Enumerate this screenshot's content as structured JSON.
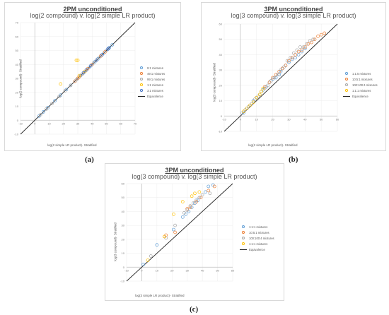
{
  "captions": {
    "a": "(a)",
    "b": "(b)",
    "c": "(c)"
  },
  "chart_data": [
    {
      "id": "a",
      "type": "scatter",
      "title_bold": "2PM unconditioned",
      "title": "log(2 compound) v. log(2 simple LR product)",
      "xlabel": "log(2 simple LR product)- Stratified",
      "ylabel": "log(2 compound)- Stratified",
      "xlim": [
        -10,
        70
      ],
      "ylim": [
        -10,
        70
      ],
      "xticks": [
        -10,
        0,
        10,
        20,
        30,
        40,
        50,
        60,
        70
      ],
      "yticks": [
        -10,
        0,
        10,
        20,
        30,
        40,
        50,
        60,
        70
      ],
      "legend_position": "right",
      "equivalence_label": "Equivalence",
      "series": [
        {
          "name": "9:1 mixtures",
          "color": "#5b9bd5",
          "x": [
            3,
            6,
            9,
            14,
            18,
            22,
            25,
            28,
            30,
            32,
            34,
            36,
            38,
            40,
            42,
            44,
            46,
            48,
            50,
            52,
            54
          ],
          "y": [
            3,
            6,
            9,
            14,
            18,
            22,
            25,
            28,
            30,
            32,
            34,
            36,
            38,
            40,
            42,
            44,
            46,
            48,
            50,
            52,
            54
          ]
        },
        {
          "name": "49:1 mixtures",
          "color": "#ed7d31",
          "x": [
            28,
            30,
            31,
            33,
            35,
            37,
            40,
            43,
            46,
            49
          ],
          "y": [
            28,
            30,
            31,
            33,
            35,
            37,
            40,
            43,
            46,
            49
          ]
        },
        {
          "name": "99:1 mixtures",
          "color": "#a5a5a5",
          "x": [
            4,
            8,
            12,
            17,
            21,
            25,
            29,
            33,
            36,
            41,
            45,
            50
          ],
          "y": [
            4,
            8,
            12,
            17,
            21,
            25,
            29,
            33,
            36,
            41,
            45,
            50
          ]
        },
        {
          "name": "1:1 mixtures",
          "color": "#ffc000",
          "x": [
            18,
            29,
            30,
            31,
            35
          ],
          "y": [
            26,
            43,
            43,
            32,
            35
          ]
        },
        {
          "name": "3:1 mixtures",
          "color": "#4472c4",
          "x": [
            34,
            36,
            39,
            43,
            47,
            51,
            51.5
          ],
          "y": [
            34,
            36,
            39,
            43,
            47,
            51,
            51.5
          ]
        }
      ]
    },
    {
      "id": "b",
      "type": "scatter",
      "title_bold": "3PM unconditioned",
      "title": "log(3 compound) v. log(3 simple LR product)",
      "xlabel": "log(2 simple LR product)- Stratified",
      "ylabel": "log(3 compound)- Stratified",
      "xlim": [
        -10,
        60
      ],
      "ylim": [
        -10,
        60
      ],
      "xticks": [
        -10,
        0,
        10,
        20,
        30,
        40,
        50,
        60
      ],
      "yticks": [
        -10,
        0,
        10,
        20,
        30,
        40,
        50,
        60
      ],
      "legend_position": "right",
      "equivalence_label": "Equivalence",
      "series": [
        {
          "name": "1:1:5 mixtures",
          "color": "#5b9bd5",
          "x": [
            2,
            4,
            6,
            8,
            10,
            12,
            14,
            16,
            18,
            20,
            22,
            24,
            25,
            26,
            28,
            30,
            32,
            34,
            36,
            38,
            40
          ],
          "y": [
            2,
            5,
            7,
            10,
            12,
            14,
            17,
            19,
            22,
            24,
            25,
            27,
            29,
            31,
            33,
            35,
            37,
            38,
            40,
            42,
            44
          ]
        },
        {
          "name": "10:5:1 mixtures",
          "color": "#ed7d31",
          "x": [
            15,
            18,
            20,
            22,
            24,
            26,
            28,
            30,
            32,
            34,
            36,
            38,
            40,
            42,
            44,
            46,
            48,
            50,
            52
          ],
          "y": [
            19,
            22,
            25,
            27,
            29,
            31,
            33,
            36,
            38,
            40,
            42,
            43,
            45,
            47,
            48,
            50,
            52,
            53,
            54
          ]
        },
        {
          "name": "100:100:4 mixtures",
          "color": "#a5a5a5",
          "x": [
            1,
            3,
            5,
            7,
            9,
            11,
            13,
            15,
            17,
            19,
            21,
            23,
            25,
            27,
            29,
            31,
            33,
            35,
            37,
            39,
            41,
            43,
            45
          ],
          "y": [
            2,
            4,
            6,
            8,
            11,
            13,
            16,
            18,
            20,
            23,
            25,
            27,
            30,
            32,
            36,
            38,
            41,
            43,
            45,
            45,
            47,
            49,
            50
          ]
        },
        {
          "name": "1:1:1 mixtures",
          "color": "#ffc000",
          "x": [
            2,
            4,
            6,
            8,
            10,
            12,
            13,
            14
          ],
          "y": [
            3,
            5,
            7,
            9,
            12,
            14,
            16,
            18
          ]
        }
      ]
    },
    {
      "id": "c",
      "type": "scatter",
      "title_bold": "3PM unconditioned",
      "title": "log(3 compound) v. log(3 simple LR product)",
      "xlabel": "log(3 simple LR product)- Stratified",
      "ylabel": "log(3 compound)- Stratified",
      "xlim": [
        -10,
        60
      ],
      "ylim": [
        -10,
        60
      ],
      "xticks": [
        -10,
        0,
        10,
        20,
        30,
        40,
        50,
        60
      ],
      "yticks": [
        -10,
        0,
        10,
        20,
        30,
        40,
        50,
        60
      ],
      "legend_position": "right",
      "equivalence_label": "Equivalence",
      "series": [
        {
          "name": "1:1:1 mixtures",
          "color": "#5b9bd5",
          "x": [
            1,
            10,
            21,
            27,
            29,
            31,
            33,
            35,
            37,
            42,
            44,
            47
          ],
          "y": [
            2,
            16,
            27,
            36,
            38,
            40,
            43,
            46,
            48,
            54,
            58,
            59
          ]
        },
        {
          "name": "10:5:1 mixtures",
          "color": "#ed7d31",
          "x": [
            15,
            16,
            22,
            30,
            32,
            36,
            39,
            44,
            48
          ],
          "y": [
            22,
            23,
            25,
            42,
            43,
            47,
            50,
            55,
            58
          ]
        },
        {
          "name": "100:100:4 mixtures",
          "color": "#a5a5a5",
          "x": [
            6,
            16,
            22,
            28,
            30,
            32,
            34,
            36,
            38,
            40,
            45
          ],
          "y": [
            8,
            21,
            30,
            39,
            41,
            44,
            46,
            48,
            50,
            52,
            53
          ]
        },
        {
          "name": "1:1:1 mixtures",
          "color": "#ffc000",
          "x": [
            4,
            15,
            21,
            27,
            33,
            35,
            38
          ],
          "y": [
            5,
            22,
            38,
            47,
            51,
            53,
            54
          ]
        }
      ]
    }
  ]
}
